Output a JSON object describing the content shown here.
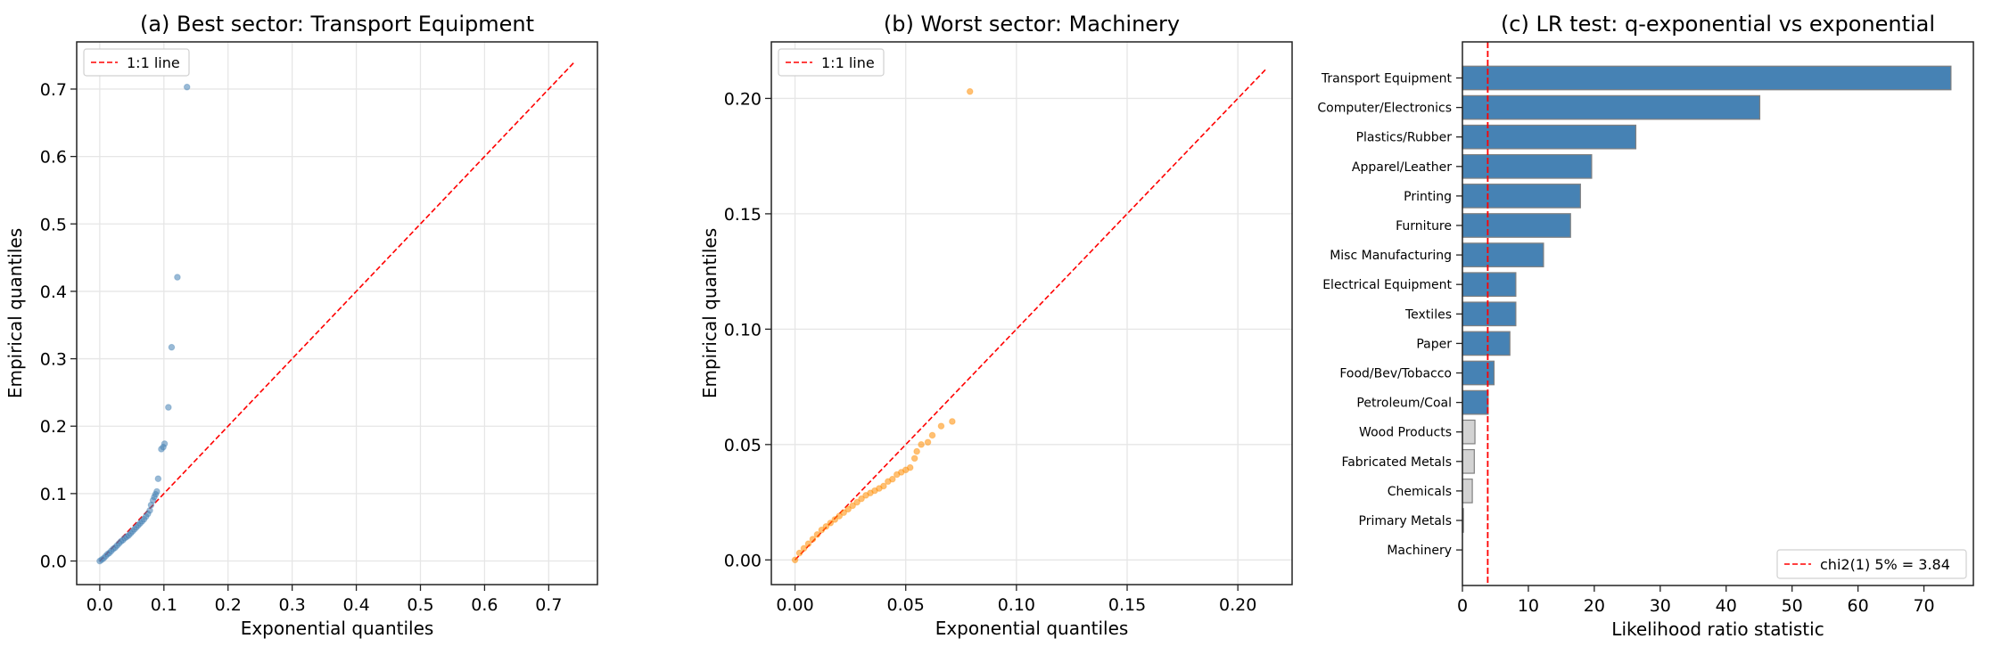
{
  "chart_data": [
    {
      "type": "scatter",
      "title": "(a) Best sector: Transport Equipment",
      "xlabel": "Exponential quantiles",
      "ylabel": "Empirical quantiles",
      "xlim": [
        -0.036,
        0.776
      ],
      "ylim": [
        -0.035,
        0.77
      ],
      "xticks": [
        "0.0",
        "0.1",
        "0.2",
        "0.3",
        "0.4",
        "0.5",
        "0.6",
        "0.7"
      ],
      "yticks": [
        "0.0",
        "0.1",
        "0.2",
        "0.3",
        "0.4",
        "0.5",
        "0.6",
        "0.7"
      ],
      "grid": true,
      "legend": {
        "position": "upper left",
        "entries": [
          "1:1 line"
        ]
      },
      "reference_line": {
        "label": "1:1 line",
        "from": [
          0,
          0
        ],
        "to": [
          0.74,
          0.74
        ],
        "color": "#ff0000",
        "style": "dashed"
      },
      "point_color": "#4682b4",
      "points": [
        [
          0.0,
          0.0
        ],
        [
          0.003,
          0.002
        ],
        [
          0.006,
          0.004
        ],
        [
          0.009,
          0.007
        ],
        [
          0.012,
          0.01
        ],
        [
          0.015,
          0.012
        ],
        [
          0.018,
          0.015
        ],
        [
          0.021,
          0.018
        ],
        [
          0.024,
          0.02
        ],
        [
          0.027,
          0.023
        ],
        [
          0.03,
          0.026
        ],
        [
          0.033,
          0.029
        ],
        [
          0.036,
          0.031
        ],
        [
          0.039,
          0.034
        ],
        [
          0.042,
          0.036
        ],
        [
          0.045,
          0.038
        ],
        [
          0.048,
          0.041
        ],
        [
          0.051,
          0.044
        ],
        [
          0.054,
          0.047
        ],
        [
          0.057,
          0.05
        ],
        [
          0.06,
          0.053
        ],
        [
          0.063,
          0.056
        ],
        [
          0.066,
          0.059
        ],
        [
          0.069,
          0.062
        ],
        [
          0.072,
          0.066
        ],
        [
          0.075,
          0.07
        ],
        [
          0.078,
          0.075
        ],
        [
          0.08,
          0.083
        ],
        [
          0.083,
          0.09
        ],
        [
          0.085,
          0.095
        ],
        [
          0.087,
          0.099
        ],
        [
          0.089,
          0.103
        ],
        [
          0.091,
          0.122
        ],
        [
          0.096,
          0.166
        ],
        [
          0.099,
          0.169
        ],
        [
          0.101,
          0.174
        ],
        [
          0.107,
          0.228
        ],
        [
          0.112,
          0.317
        ],
        [
          0.121,
          0.421
        ],
        [
          0.136,
          0.703
        ]
      ]
    },
    {
      "type": "scatter",
      "title": "(b) Worst sector: Machinery",
      "xlabel": "Exponential quantiles",
      "ylabel": "Empirical quantiles",
      "xlim": [
        -0.0107,
        0.2245
      ],
      "ylim": [
        -0.0107,
        0.2245
      ],
      "xticks": [
        "0.00",
        "0.05",
        "0.10",
        "0.15",
        "0.20"
      ],
      "yticks": [
        "0.00",
        "0.05",
        "0.10",
        "0.15",
        "0.20"
      ],
      "grid": true,
      "legend": {
        "position": "upper left",
        "entries": [
          "1:1 line"
        ]
      },
      "reference_line": {
        "label": "1:1 line",
        "from": [
          0,
          0
        ],
        "to": [
          0.213,
          0.213
        ],
        "color": "#ff0000",
        "style": "dashed"
      },
      "point_color": "#ff8c00",
      "points": [
        [
          0.0,
          0.0
        ],
        [
          0.002,
          0.003
        ],
        [
          0.004,
          0.005
        ],
        [
          0.006,
          0.007
        ],
        [
          0.008,
          0.009
        ],
        [
          0.01,
          0.011
        ],
        [
          0.012,
          0.013
        ],
        [
          0.014,
          0.0145
        ],
        [
          0.016,
          0.016
        ],
        [
          0.018,
          0.0175
        ],
        [
          0.02,
          0.019
        ],
        [
          0.022,
          0.0205
        ],
        [
          0.024,
          0.022
        ],
        [
          0.026,
          0.0235
        ],
        [
          0.028,
          0.025
        ],
        [
          0.03,
          0.0265
        ],
        [
          0.032,
          0.028
        ],
        [
          0.034,
          0.029
        ],
        [
          0.036,
          0.03
        ],
        [
          0.038,
          0.031
        ],
        [
          0.04,
          0.032
        ],
        [
          0.042,
          0.034
        ],
        [
          0.044,
          0.035
        ],
        [
          0.046,
          0.037
        ],
        [
          0.048,
          0.038
        ],
        [
          0.05,
          0.039
        ],
        [
          0.052,
          0.04
        ],
        [
          0.054,
          0.044
        ],
        [
          0.055,
          0.047
        ],
        [
          0.057,
          0.05
        ],
        [
          0.06,
          0.051
        ],
        [
          0.062,
          0.054
        ],
        [
          0.066,
          0.058
        ],
        [
          0.071,
          0.06
        ],
        [
          0.079,
          0.203
        ]
      ]
    },
    {
      "type": "bar",
      "orientation": "horizontal",
      "title": "(c) LR test: q-exponential vs exponential",
      "xlabel": "Likelihood ratio statistic",
      "ylabel": "",
      "xlim": [
        0,
        77.5
      ],
      "xticks": [
        "0",
        "10",
        "20",
        "30",
        "40",
        "50",
        "60",
        "70"
      ],
      "grid": false,
      "categories": [
        "Transport Equipment",
        "Computer/Electronics",
        "Plastics/Rubber",
        "Apparel/Leather",
        "Printing",
        "Furniture",
        "Misc Manufacturing",
        "Electrical Equipment",
        "Textiles",
        "Paper",
        "Food/Bev/Tobacco",
        "Petroleum/Coal",
        "Wood Products",
        "Fabricated Metals",
        "Chemicals",
        "Primary Metals",
        "Machinery"
      ],
      "values": [
        74.1,
        45.1,
        26.3,
        19.6,
        17.9,
        16.4,
        12.3,
        8.1,
        8.1,
        7.2,
        4.8,
        3.9,
        1.9,
        1.8,
        1.5,
        0.15,
        0.0
      ],
      "significant_color": "#4682b4",
      "nonsignificant_color": "#d3d3d3",
      "threshold": {
        "value": 3.84,
        "label": "chi2(1) 5% = 3.84",
        "color": "#ff0000",
        "style": "dashed"
      },
      "legend": {
        "position": "lower right",
        "entries": [
          "chi2(1) 5% = 3.84"
        ]
      }
    }
  ]
}
